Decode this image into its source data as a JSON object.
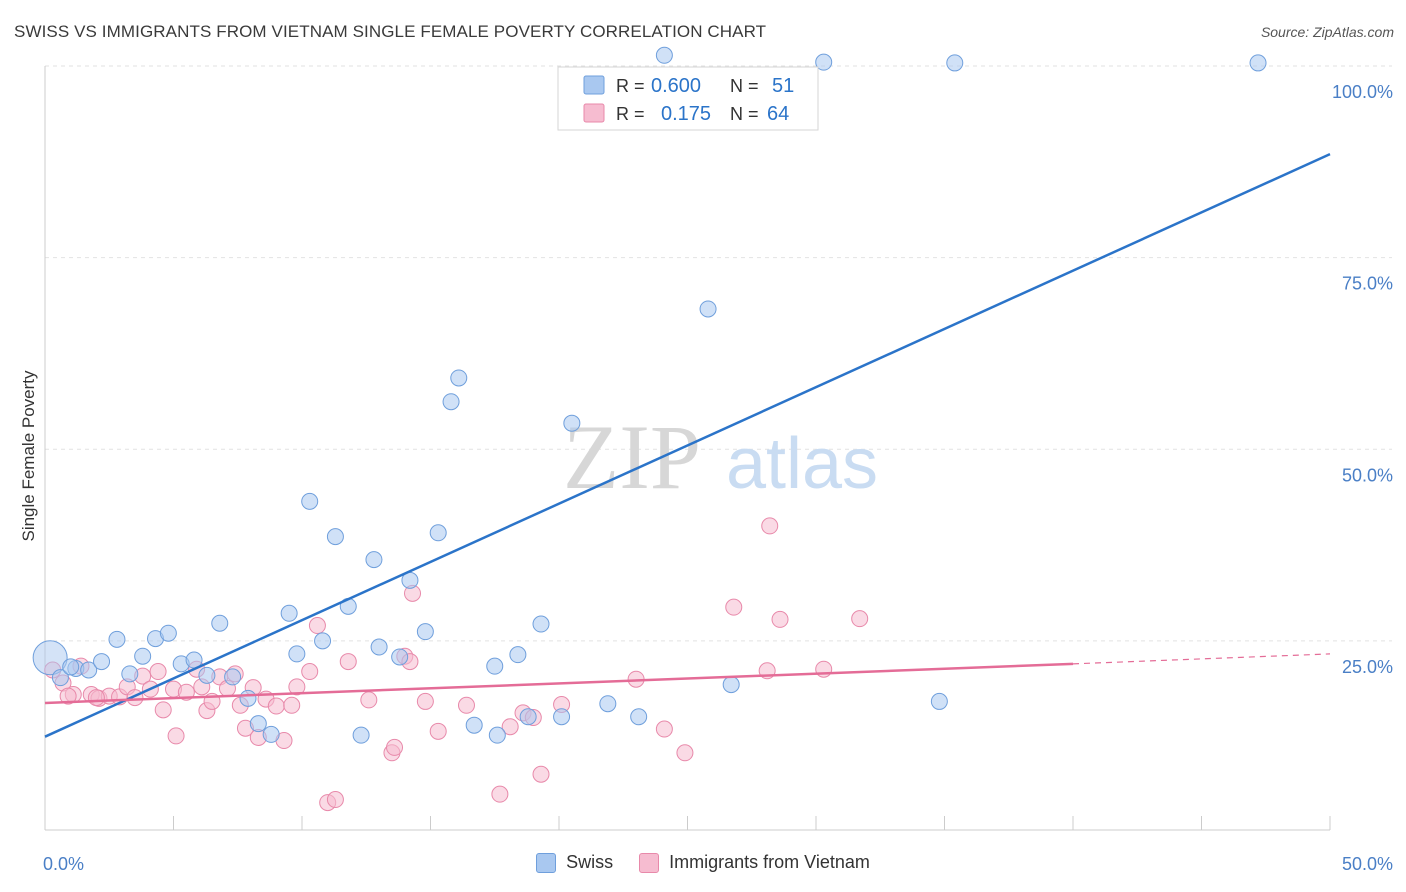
{
  "header": {
    "title": "SWISS VS IMMIGRANTS FROM VIETNAM SINGLE FEMALE POVERTY CORRELATION CHART",
    "source": "Source: ZipAtlas.com"
  },
  "watermark": {
    "zip": "ZIP",
    "atlas": "atlas"
  },
  "colors": {
    "swiss_fill": "#a9c8f0",
    "swiss_stroke": "#6f9fdc",
    "swiss_line": "#2b74c9",
    "vietnam_fill": "#f6bcd0",
    "vietnam_stroke": "#e889aa",
    "vietnam_line": "#e46c97",
    "tick_label": "#4a7fc6",
    "grid": "#e2e2e2"
  },
  "chart_data": {
    "type": "scatter",
    "title": "SWISS VS IMMIGRANTS FROM VIETNAM SINGLE FEMALE POVERTY CORRELATION CHART",
    "xlabel": "",
    "ylabel": "Single Female Poverty",
    "xlim": [
      0,
      50
    ],
    "ylim": [
      0,
      103
    ],
    "x_tick_labels": [
      "0.0%",
      "50.0%"
    ],
    "y_ticks": [
      25,
      50,
      75,
      100
    ],
    "y_tick_labels": [
      "25.0%",
      "50.0%",
      "75.0%",
      "100.0%"
    ],
    "legend": [
      {
        "label": "R = ",
        "r": "0.600",
        "n_label": "N = ",
        "n": "51"
      },
      {
        "label": "R = ",
        "r": "0.175",
        "n_label": "N = ",
        "n": "64"
      }
    ],
    "series": [
      {
        "name": "Swiss",
        "r": 0.6,
        "n": 51,
        "trend": {
          "x": [
            0,
            50
          ],
          "y": [
            12.5,
            88.5
          ]
        },
        "points": [
          [
            0.2,
            22.8
          ],
          [
            0.6,
            20.2
          ],
          [
            1.2,
            21.4
          ],
          [
            1.7,
            21.2
          ],
          [
            2.2,
            22.3
          ],
          [
            2.8,
            25.2
          ],
          [
            3.3,
            20.7
          ],
          [
            3.8,
            23.0
          ],
          [
            4.3,
            25.3
          ],
          [
            4.8,
            26.0
          ],
          [
            5.3,
            22.0
          ],
          [
            5.8,
            22.5
          ],
          [
            6.3,
            20.5
          ],
          [
            6.8,
            27.3
          ],
          [
            7.3,
            20.3
          ],
          [
            7.9,
            17.5
          ],
          [
            8.3,
            14.2
          ],
          [
            8.8,
            12.8
          ],
          [
            9.5,
            28.6
          ],
          [
            9.8,
            23.3
          ],
          [
            10.3,
            43.2
          ],
          [
            10.8,
            25.0
          ],
          [
            11.3,
            38.6
          ],
          [
            11.8,
            29.5
          ],
          [
            12.3,
            12.7
          ],
          [
            12.8,
            35.6
          ],
          [
            13.0,
            24.2
          ],
          [
            13.8,
            22.9
          ],
          [
            14.2,
            32.9
          ],
          [
            14.8,
            26.2
          ],
          [
            15.3,
            39.1
          ],
          [
            15.8,
            56.2
          ],
          [
            16.1,
            59.3
          ],
          [
            16.7,
            14.0
          ],
          [
            17.5,
            21.7
          ],
          [
            17.6,
            12.7
          ],
          [
            18.4,
            23.2
          ],
          [
            18.8,
            15.1
          ],
          [
            19.3,
            27.2
          ],
          [
            20.1,
            15.1
          ],
          [
            20.5,
            53.4
          ],
          [
            21.9,
            16.8
          ],
          [
            23.1,
            15.1
          ],
          [
            24.1,
            101.4
          ],
          [
            25.8,
            68.3
          ],
          [
            26.7,
            19.3
          ],
          [
            30.3,
            100.5
          ],
          [
            34.8,
            17.1
          ],
          [
            35.4,
            100.4
          ],
          [
            47.2,
            100.4
          ],
          [
            1.0,
            21.6
          ]
        ]
      },
      {
        "name": "Immigrants from Vietnam",
        "r": 0.175,
        "n": 64,
        "trend": {
          "x": [
            0,
            40
          ],
          "y": [
            16.9,
            22.0
          ]
        },
        "trend_dashed": {
          "x": [
            40,
            50
          ],
          "y": [
            22.0,
            23.3
          ]
        },
        "points": [
          [
            0.3,
            21.2
          ],
          [
            0.7,
            19.5
          ],
          [
            1.1,
            18.0
          ],
          [
            1.4,
            21.7
          ],
          [
            1.8,
            18.0
          ],
          [
            2.1,
            17.5
          ],
          [
            2.5,
            17.8
          ],
          [
            2.9,
            17.7
          ],
          [
            3.2,
            19.0
          ],
          [
            3.5,
            17.6
          ],
          [
            3.8,
            20.4
          ],
          [
            4.1,
            18.7
          ],
          [
            4.4,
            21.0
          ],
          [
            4.6,
            16.0
          ],
          [
            5.0,
            18.7
          ],
          [
            5.1,
            12.6
          ],
          [
            5.5,
            18.3
          ],
          [
            5.9,
            21.3
          ],
          [
            6.1,
            19.0
          ],
          [
            6.3,
            15.9
          ],
          [
            6.5,
            17.1
          ],
          [
            6.8,
            20.3
          ],
          [
            7.1,
            18.8
          ],
          [
            7.4,
            20.7
          ],
          [
            7.6,
            16.6
          ],
          [
            7.8,
            13.6
          ],
          [
            8.1,
            18.9
          ],
          [
            8.3,
            12.4
          ],
          [
            8.6,
            17.4
          ],
          [
            9.0,
            16.5
          ],
          [
            9.3,
            12.0
          ],
          [
            9.6,
            16.6
          ],
          [
            9.8,
            19.0
          ],
          [
            10.3,
            21.0
          ],
          [
            10.6,
            27.0
          ],
          [
            11.0,
            3.9
          ],
          [
            11.3,
            4.3
          ],
          [
            11.8,
            22.3
          ],
          [
            12.6,
            17.3
          ],
          [
            13.5,
            10.4
          ],
          [
            13.6,
            11.1
          ],
          [
            14.0,
            23.0
          ],
          [
            14.2,
            22.3
          ],
          [
            14.3,
            31.2
          ],
          [
            14.8,
            17.1
          ],
          [
            15.3,
            13.2
          ],
          [
            16.4,
            16.6
          ],
          [
            17.7,
            5.0
          ],
          [
            18.1,
            13.8
          ],
          [
            18.6,
            15.6
          ],
          [
            19.3,
            7.6
          ],
          [
            19.0,
            15.0
          ],
          [
            20.1,
            16.7
          ],
          [
            23.0,
            20.0
          ],
          [
            24.1,
            13.5
          ],
          [
            24.9,
            10.4
          ],
          [
            26.8,
            29.4
          ],
          [
            28.2,
            40.0
          ],
          [
            28.1,
            21.1
          ],
          [
            28.6,
            27.8
          ],
          [
            30.3,
            21.3
          ],
          [
            31.7,
            27.9
          ],
          [
            0.9,
            17.8
          ],
          [
            2.0,
            17.6
          ]
        ]
      }
    ]
  },
  "bottom_legend": [
    {
      "label": "Swiss"
    },
    {
      "label": "Immigrants from Vietnam"
    }
  ]
}
